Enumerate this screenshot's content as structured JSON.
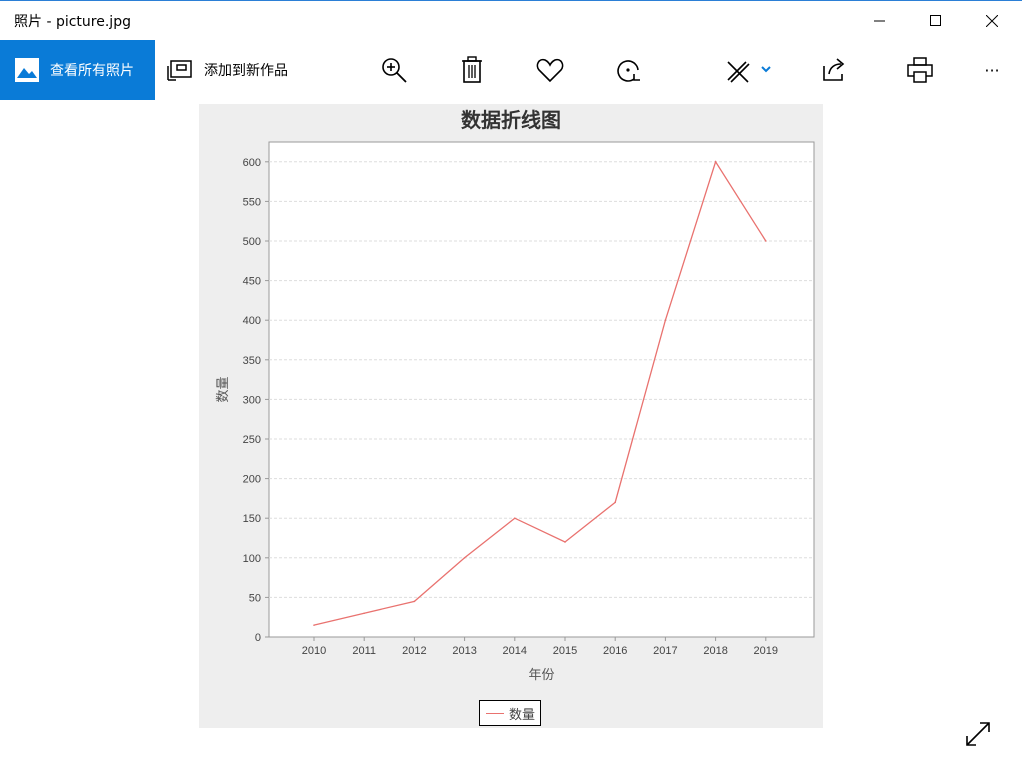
{
  "window": {
    "title": "照片 - picture.jpg"
  },
  "toolbar": {
    "view_all_label": "查看所有照片",
    "add_to_creation_label": "添加到新作品",
    "more_label": "···"
  },
  "colors": {
    "accent": "#0a7bd7",
    "series": "#e9726f"
  },
  "chart_data": {
    "type": "line",
    "title": "数据折线图",
    "xlabel": "年份",
    "ylabel": "数量",
    "categories": [
      "2010",
      "2011",
      "2012",
      "2013",
      "2014",
      "2015",
      "2016",
      "2017",
      "2018",
      "2019"
    ],
    "series": [
      {
        "name": "数量",
        "values": [
          15,
          30,
          45,
          100,
          150,
          120,
          170,
          400,
          600,
          500
        ]
      }
    ],
    "ylim": [
      0,
      625
    ],
    "yticks": [
      0,
      50,
      100,
      150,
      200,
      250,
      300,
      350,
      400,
      450,
      500,
      550,
      600
    ],
    "grid": true,
    "legend": "bottom"
  }
}
